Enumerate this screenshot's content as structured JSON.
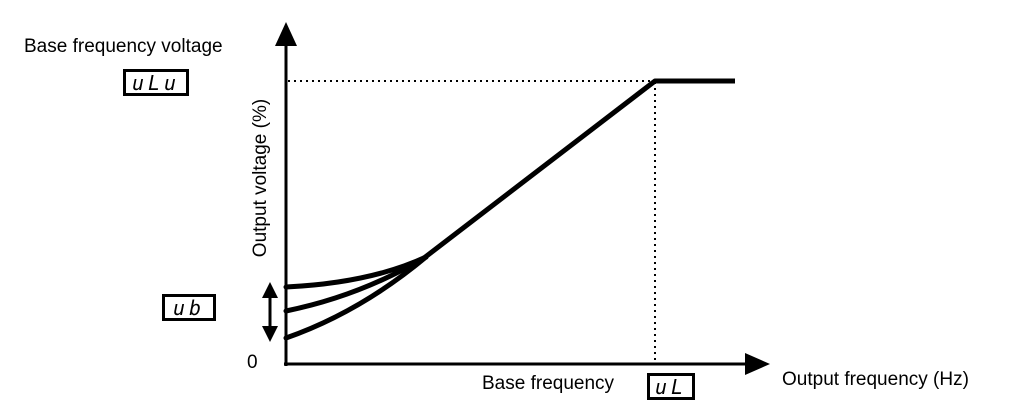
{
  "diagram": {
    "title": "Base frequency voltage",
    "y_axis_label": "Output voltage (%)",
    "x_axis_label": "Output frequency (Hz)",
    "origin_label": "0",
    "base_frequency_label": "Base frequency",
    "parameter_codes": {
      "base_frequency_voltage": "uLu",
      "torque_boost": "ub",
      "base_frequency": "uL"
    },
    "curves": [
      "linear",
      "intermediate",
      "square-law"
    ]
  }
}
